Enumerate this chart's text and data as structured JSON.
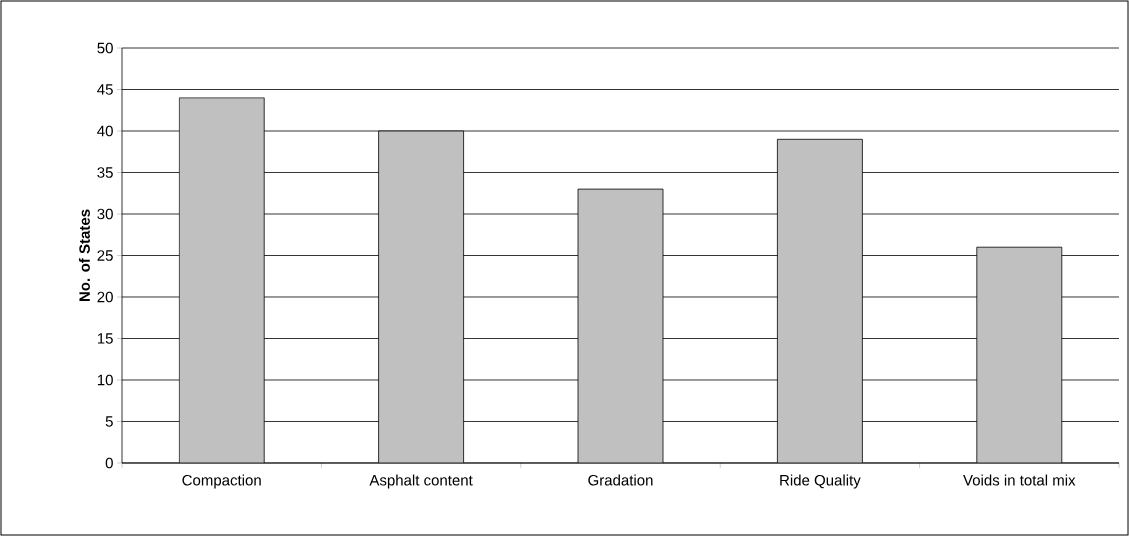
{
  "chart_data": {
    "type": "bar",
    "ylabel": "No. of States",
    "categories": [
      "Compaction",
      "Asphalt content",
      "Gradation",
      "Ride Quality",
      "Voids in total mix"
    ],
    "values": [
      44,
      40,
      33,
      39,
      26
    ],
    "color": "#c0c0c0",
    "ylim": [
      0,
      50
    ],
    "yticks": [
      0,
      5,
      10,
      15,
      20,
      25,
      30,
      35,
      40,
      45,
      50
    ],
    "grid": "y"
  }
}
